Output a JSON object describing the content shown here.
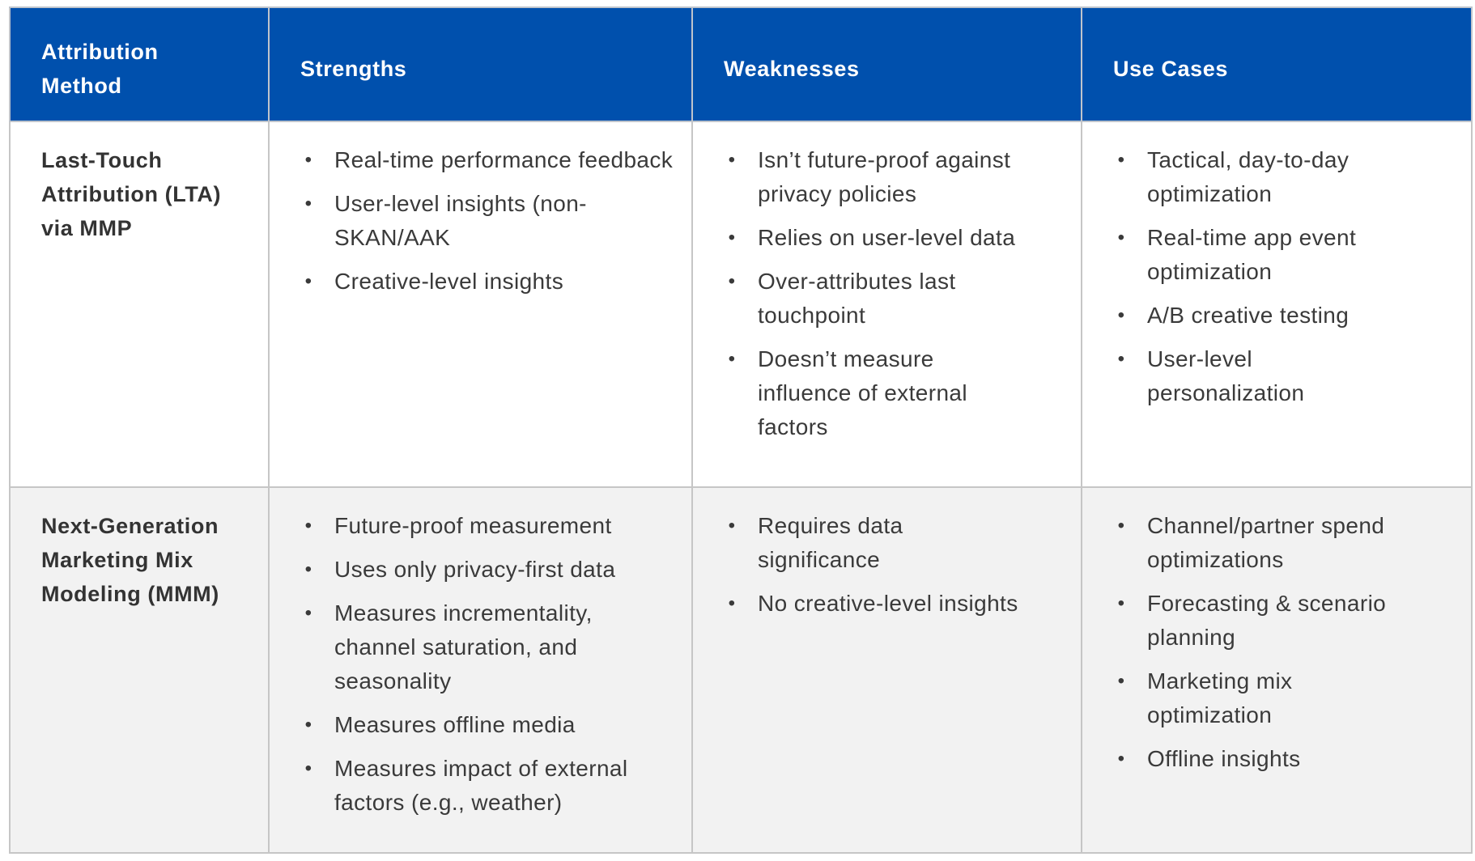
{
  "table": {
    "headers": [
      "Attribution Method",
      "Strengths",
      "Weaknesses",
      "Use Cases"
    ],
    "rows": [
      {
        "method": "Last-Touch Attribution (LTA) via MMP",
        "strengths": [
          "Real-time performance feedback",
          "User-level insights (non-SKAN/AAK",
          "Creative-level insights"
        ],
        "weaknesses": [
          "Isn’t future-proof against privacy policies",
          "Relies on user-level data",
          "Over-attributes last touchpoint",
          "Doesn’t measure influence of external factors"
        ],
        "use_cases": [
          "Tactical, day-to-day optimization",
          "Real-time app event optimization",
          "A/B creative testing",
          "User-level personalization"
        ]
      },
      {
        "method": "Next-Generation Marketing Mix Modeling (MMM)",
        "strengths": [
          "Future-proof measurement",
          "Uses only privacy-first data",
          "Measures incrementality, channel saturation, and seasonality",
          "Measures offline media",
          "Measures impact of external factors (e.g., weather)"
        ],
        "weaknesses": [
          "Requires data significance",
          "No creative-level insights"
        ],
        "use_cases": [
          "Channel/partner spend optimizations",
          "Forecasting & scenario planning",
          "Marketing mix optimization",
          "Offline insights"
        ]
      }
    ],
    "bullet": "•"
  },
  "colors": {
    "header_bg": "#0050ad",
    "header_text": "#ffffff",
    "body_text": "#3a3a3a",
    "row_alt_bg": "#f2f2f2",
    "border": "#c6c6c6"
  }
}
